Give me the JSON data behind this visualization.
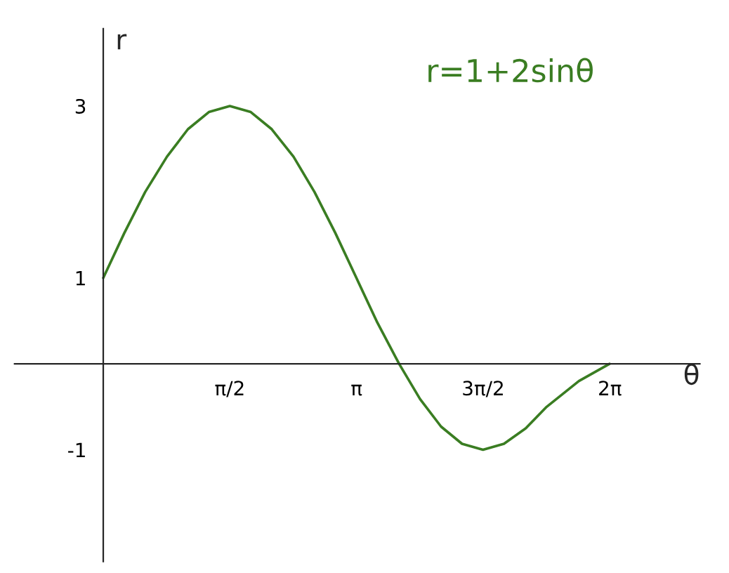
{
  "chart_data": {
    "type": "line",
    "xlabel": "θ",
    "ylabel": "r",
    "annotations": [
      "r=1+2sinθ"
    ],
    "x": [
      0,
      0.26,
      0.52,
      0.79,
      1.05,
      1.31,
      1.57,
      1.83,
      2.09,
      2.36,
      2.62,
      2.88,
      3.14,
      3.4,
      3.67,
      3.93,
      4.19,
      4.45,
      4.71,
      4.97,
      5.24,
      5.5,
      5.9,
      6.28
    ],
    "series": [
      {
        "color": "#3a7d22",
        "values": [
          1.0,
          1.52,
          2.0,
          2.41,
          2.73,
          2.93,
          3.0,
          2.93,
          2.73,
          2.41,
          2.0,
          1.52,
          1.0,
          0.48,
          0.0,
          -0.41,
          -0.73,
          -0.93,
          -1.0,
          -0.93,
          -0.75,
          -0.5,
          -0.2,
          0.0
        ]
      }
    ],
    "xlim": [
      -1.1,
      7.4
    ],
    "ylim": [
      -2.3,
      3.9
    ],
    "xticks": [
      {
        "value": 1.5708,
        "label": "π/2"
      },
      {
        "value": 3.1416,
        "label": "π"
      },
      {
        "value": 4.7124,
        "label": "3π/2"
      },
      {
        "value": 6.2832,
        "label": "2π"
      }
    ],
    "yticks": [
      {
        "value": 3,
        "label": "3"
      },
      {
        "value": 1,
        "label": "1"
      },
      {
        "value": -1,
        "label": "-1"
      }
    ],
    "grid": false,
    "legend": false,
    "line_style": "solid",
    "marker": "none"
  }
}
